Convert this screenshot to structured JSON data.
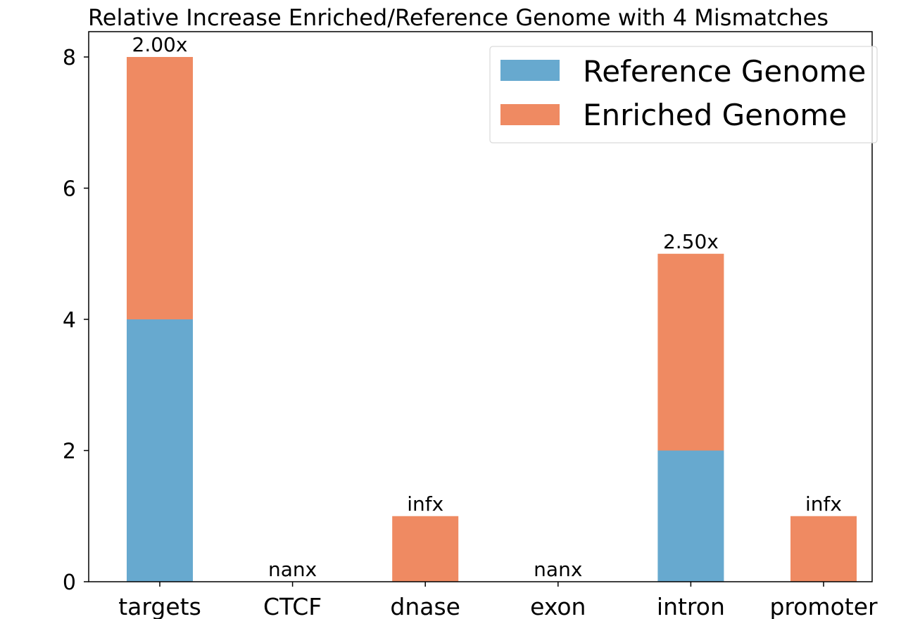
{
  "chart_data": {
    "type": "bar",
    "stacked": true,
    "title": "Relative Increase Enriched/Reference Genome with 4 Mismatches",
    "xlabel": "",
    "ylabel": "",
    "categories": [
      "targets",
      "CTCF",
      "dnase",
      "exon",
      "intron",
      "promoter"
    ],
    "series": [
      {
        "name": "Reference Genome",
        "values": [
          4,
          0,
          0,
          0,
          2,
          0
        ],
        "color": "#67a9cf"
      },
      {
        "name": "Enriched Genome",
        "values": [
          4,
          0,
          1,
          0,
          3,
          1
        ],
        "color": "#ef8a62"
      }
    ],
    "bar_labels": [
      "2.00x",
      "nanx",
      "infx",
      "nanx",
      "2.50x",
      "infx"
    ],
    "ylim": [
      0,
      8.4
    ],
    "yticks": [
      0,
      2,
      4,
      6,
      8
    ],
    "grid": false,
    "legend_position": "top-right"
  }
}
